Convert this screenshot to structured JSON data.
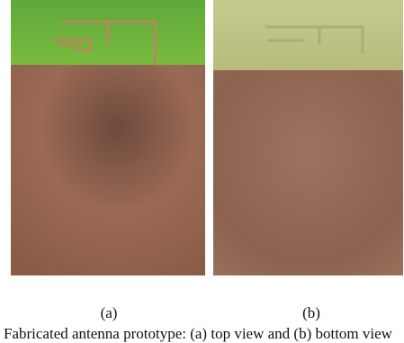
{
  "figure": {
    "panels": [
      {
        "label": "(a)"
      },
      {
        "label": "(b)"
      }
    ],
    "caption": "Fabricated antenna prototype: (a) top view and (b) bottom view"
  }
}
